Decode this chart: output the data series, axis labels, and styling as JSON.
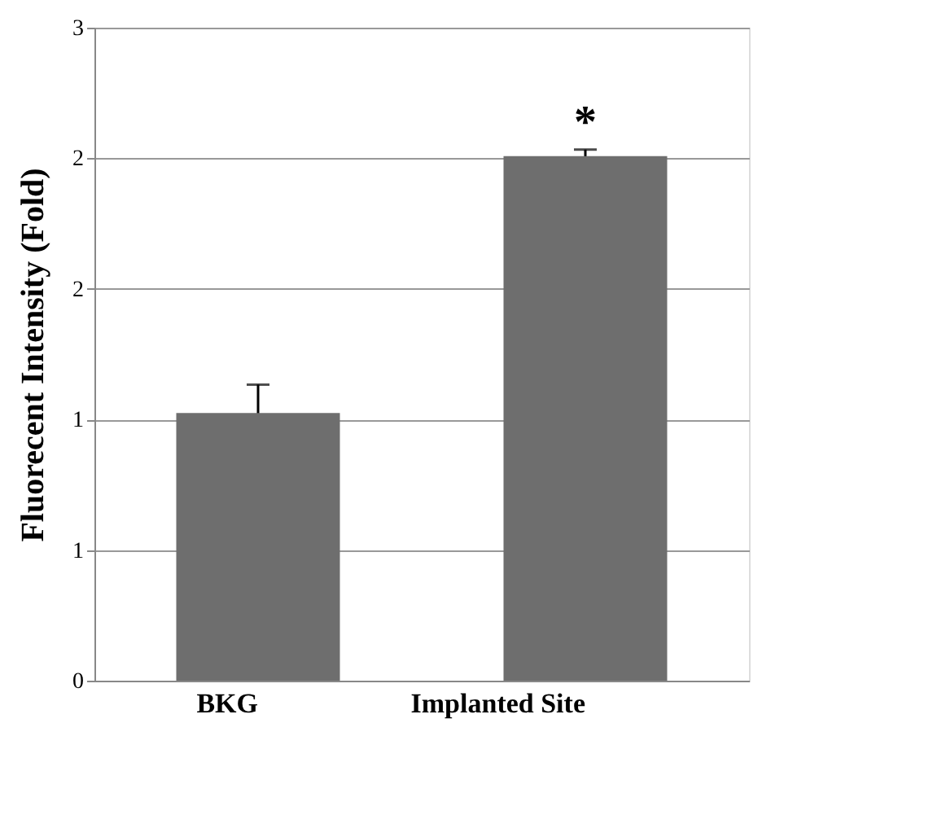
{
  "chart_data": {
    "type": "bar",
    "ylabel": "Fluorecent Intensity (Fold)",
    "categories": [
      "BKG",
      "Implanted Site"
    ],
    "values": [
      1.23,
      2.41
    ],
    "errors": [
      0.13,
      0.03
    ],
    "color": "#6e6e6e",
    "ylim": [
      0,
      3
    ],
    "yticks": [
      0,
      {
        "value": 0.6,
        "label": "1"
      },
      {
        "value": 1.2,
        "label": "1"
      },
      {
        "value": 1.8,
        "label": "2"
      },
      {
        "value": 2.4,
        "label": "2"
      },
      3
    ],
    "grid": "y",
    "annotations": [
      {
        "text": "*",
        "x": "Implanted Site",
        "y": 2.44
      }
    ]
  }
}
